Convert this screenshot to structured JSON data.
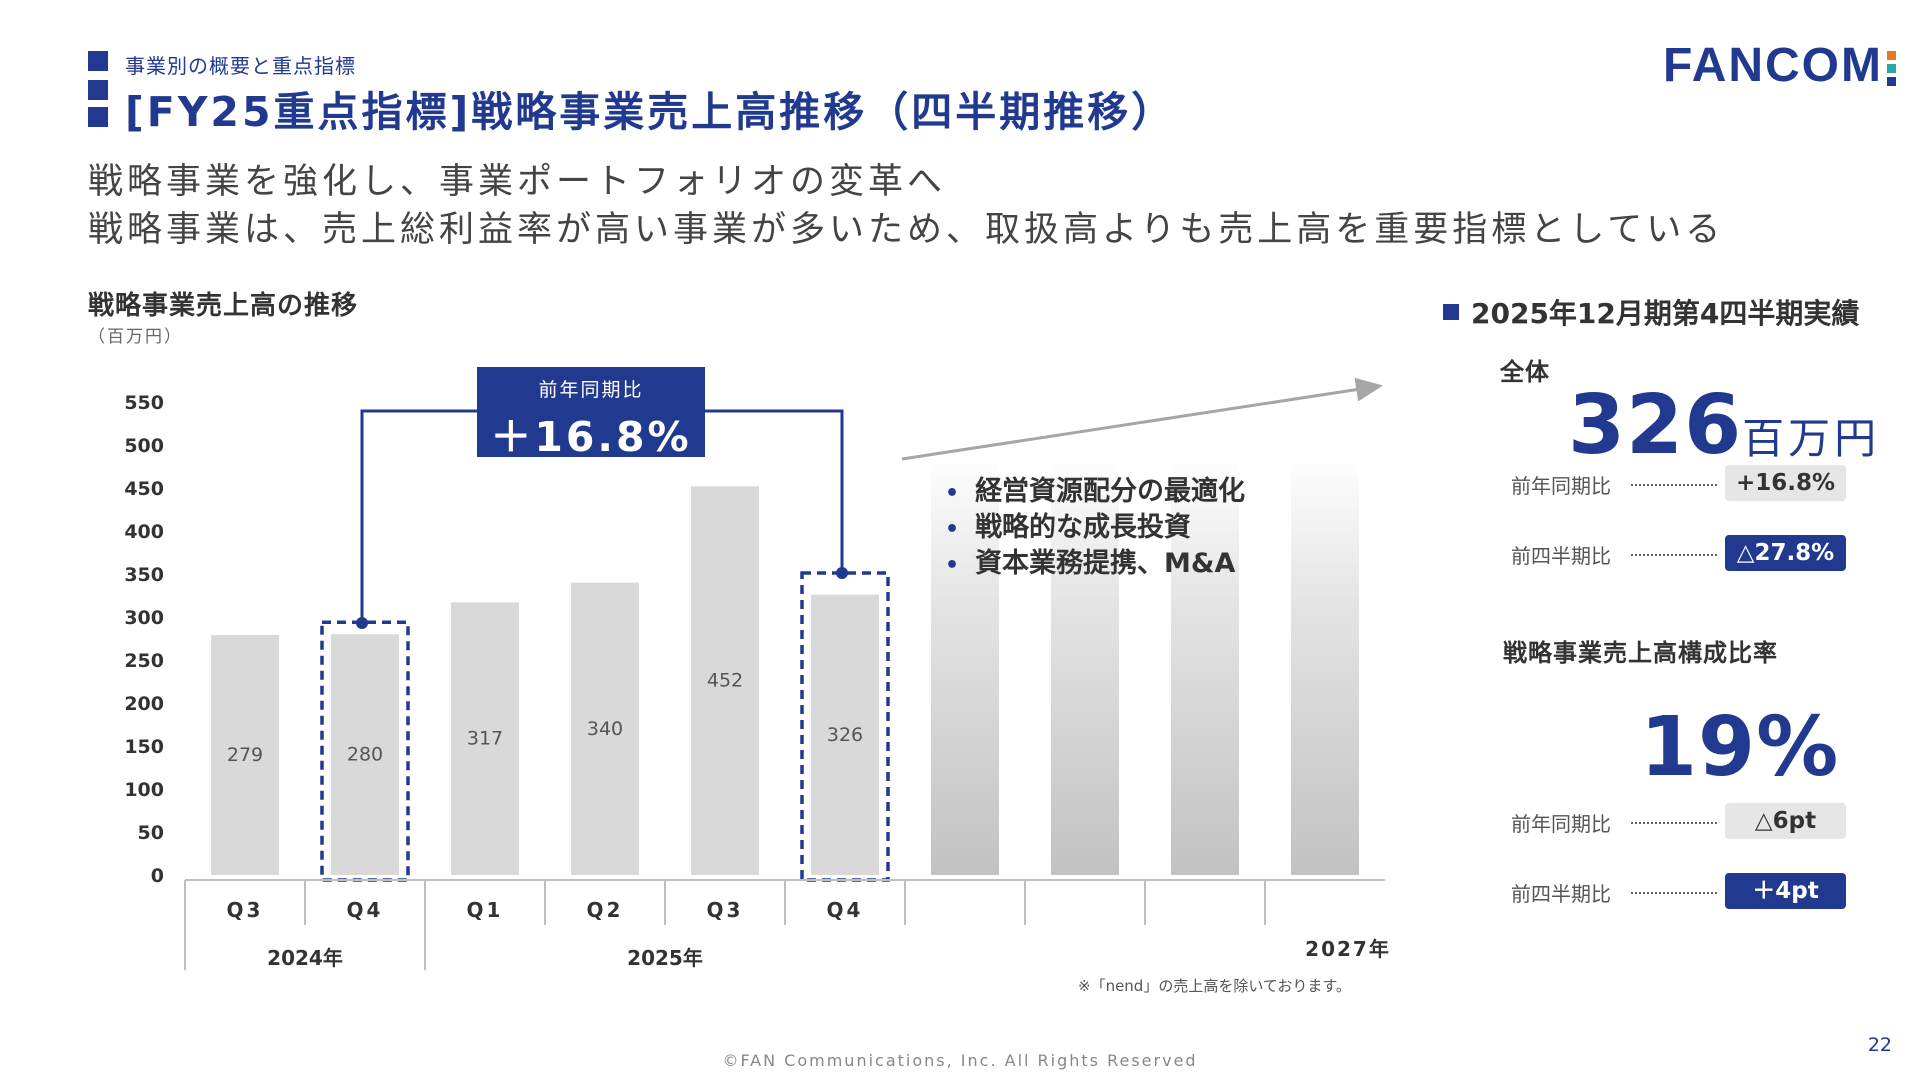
{
  "header": {
    "section_label": "事業別の概要と重点指標",
    "title": "[FY25重点指標]戦略事業売上高推移（四半期推移）",
    "logo": "FANCOM"
  },
  "lead": [
    "戦略事業を強化し、事業ポートフォリオの変革へ",
    "戦略事業は、売上総利益率が高い事業が多いため、取扱高よりも売上高を重要指標としている"
  ],
  "chart": {
    "title": "戦略事業売上高の推移",
    "unit": "（百万円）",
    "yoy_label": "前年同期比",
    "yoy_value": "＋16.8%",
    "bullets": [
      "経営資源配分の最適化",
      "戦略的な成長投資",
      "資本業務提携、M&A"
    ],
    "year_labels": [
      "2024年",
      "2025年",
      "2027年"
    ],
    "footnote": "※「nend」の売上高を除いております。"
  },
  "chart_data": {
    "type": "bar",
    "categories": [
      "Q3",
      "Q4",
      "Q1",
      "Q2",
      "Q3",
      "Q4"
    ],
    "values": [
      279,
      280,
      317,
      340,
      452,
      326
    ],
    "ylim": [
      0,
      550
    ],
    "yticks": [
      0,
      50,
      100,
      150,
      200,
      250,
      300,
      350,
      400,
      450,
      500,
      550
    ],
    "highlighted": [
      "Q4 2024",
      "Q4 2025"
    ],
    "grid": false
  },
  "results": {
    "heading": "2025年12月期第4四半期実績",
    "total_label": "全体",
    "total_value": "326",
    "total_unit": "百万円",
    "total_comparisons": [
      {
        "label": "前年同期比",
        "value": "+16.8%",
        "style": "grey"
      },
      {
        "label": "前四半期比",
        "value": "△27.8%",
        "style": "blue"
      }
    ],
    "ratio_label": "戦略事業売上高構成比率",
    "ratio_value": "19%",
    "ratio_comparisons": [
      {
        "label": "前年同期比",
        "value": "△6pt",
        "style": "grey"
      },
      {
        "label": "前四半期比",
        "value": "＋4pt",
        "style": "blue"
      }
    ]
  },
  "colors": {
    "brand": "#213a8f",
    "bar": "#d9d9d9",
    "logo_dots": [
      "#e87722",
      "#2aa7a0"
    ]
  },
  "footer": {
    "copyright": "©FAN Communications, Inc. All Rights Reserved",
    "page": "22"
  }
}
